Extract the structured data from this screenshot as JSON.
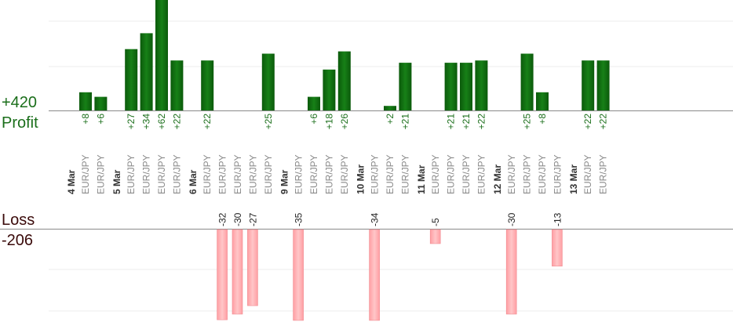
{
  "chart_data": {
    "type": "bar",
    "profit_label": "Profit",
    "loss_label": "Loss",
    "profit_total": "+420",
    "loss_total": "-206",
    "profit_color": "#0e6a0e",
    "loss_color": "#ffb6b9",
    "profit_text_color": "#1a6e1a",
    "loss_text_color": "#3a0a0a",
    "days": [
      {
        "label": "4 Mar",
        "trades": [
          {
            "pair": "EUR/JPY",
            "value": 8
          },
          {
            "pair": "EUR/JPY",
            "value": 6
          }
        ]
      },
      {
        "label": "5 Mar",
        "trades": [
          {
            "pair": "EUR/JPY",
            "value": 27
          },
          {
            "pair": "EUR/JPY",
            "value": 34
          }
        ]
      },
      {
        "label": "",
        "trades": [
          {
            "pair": "EUR/JPY",
            "value": 62
          },
          {
            "pair": "EUR/JPY",
            "value": 22
          }
        ]
      },
      {
        "label": "6 Mar",
        "trades": [
          {
            "pair": "EUR/JPY",
            "value": 22
          },
          {
            "pair": "EUR/JPY",
            "value": -32
          },
          {
            "pair": "EUR/JPY",
            "value": -30
          },
          {
            "pair": "EUR/JPY",
            "value": -27
          },
          {
            "pair": "EUR/JPY",
            "value": 25
          }
        ]
      },
      {
        "label": "9 Mar",
        "trades": [
          {
            "pair": "EUR/JPY",
            "value": -35
          },
          {
            "pair": "EUR/JPY",
            "value": 6
          },
          {
            "pair": "EUR/JPY",
            "value": 18
          },
          {
            "pair": "EUR/JPY",
            "value": 26
          }
        ]
      },
      {
        "label": "10 Mar",
        "trades": [
          {
            "pair": "EUR/JPY",
            "value": -34
          },
          {
            "pair": "EUR/JPY",
            "value": 2
          },
          {
            "pair": "EUR/JPY",
            "value": 21
          }
        ]
      },
      {
        "label": "11 Mar",
        "trades": [
          {
            "pair": "EUR/JPY",
            "value": -5
          },
          {
            "pair": "EUR/JPY",
            "value": 21
          },
          {
            "pair": "EUR/JPY",
            "value": 21
          },
          {
            "pair": "EUR/JPY",
            "value": 22
          }
        ]
      },
      {
        "label": "12 Mar",
        "trades": [
          {
            "pair": "EUR/JPY",
            "value": -30
          },
          {
            "pair": "EUR/JPY",
            "value": 25
          },
          {
            "pair": "EUR/JPY",
            "value": 8
          },
          {
            "pair": "EUR/JPY",
            "value": -13
          }
        ]
      },
      {
        "label": "13 Mar",
        "trades": [
          {
            "pair": "EUR/JPY",
            "value": 22
          },
          {
            "pair": "EUR/JPY",
            "value": 22
          }
        ]
      }
    ]
  }
}
